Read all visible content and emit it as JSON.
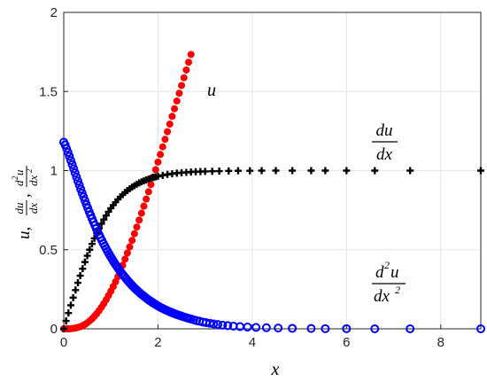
{
  "chart_data": {
    "type": "scatter",
    "title": "",
    "xlabel": "x",
    "ylabel_parts": {
      "u": "u,",
      "du": "du",
      "dx": "dx",
      "d2u": "d",
      "d2u_sup": "2",
      "d2u_u": "u",
      "dx2": "dx",
      "dx2_sup": "2",
      "comma": ","
    },
    "xlim": [
      0,
      8.85
    ],
    "ylim": [
      0,
      2
    ],
    "xticks": [
      0,
      2,
      4,
      6,
      8
    ],
    "yticks": [
      0,
      0.5,
      1,
      1.5,
      2
    ],
    "xtick_labels": [
      "0",
      "2",
      "4",
      "6",
      "8"
    ],
    "ytick_labels": [
      "0",
      "0.5",
      "1",
      "1.5",
      "2"
    ],
    "grid": true,
    "series": [
      {
        "name": "u",
        "marker": "filled-circle",
        "color": "#ff0000",
        "formula": "x - tanh(x) approx ; visible until y=2",
        "x": [
          0.0,
          0.05,
          0.1,
          0.15,
          0.2,
          0.25,
          0.3,
          0.35,
          0.4,
          0.45,
          0.5,
          0.55,
          0.6,
          0.65,
          0.7,
          0.75,
          0.8,
          0.85,
          0.9,
          0.95,
          1.0,
          1.05,
          1.1,
          1.15,
          1.2,
          1.25,
          1.3,
          1.35,
          1.4,
          1.45,
          1.5,
          1.55,
          1.6,
          1.65,
          1.7,
          1.75,
          1.8,
          1.85,
          1.9,
          1.95,
          2.0,
          2.05,
          2.1,
          2.15,
          2.2,
          2.25,
          2.3,
          2.35,
          2.4,
          2.45,
          2.5,
          2.55,
          2.6,
          2.65,
          2.7
        ],
        "y": [
          0.0,
          0.0,
          0.0,
          0.001,
          0.003,
          0.005,
          0.009,
          0.013,
          0.02,
          0.028,
          0.038,
          0.05,
          0.063,
          0.079,
          0.096,
          0.115,
          0.136,
          0.159,
          0.184,
          0.21,
          0.238,
          0.267,
          0.298,
          0.33,
          0.366,
          0.402,
          0.44,
          0.479,
          0.518,
          0.559,
          0.601,
          0.643,
          0.687,
          0.731,
          0.775,
          0.82,
          0.866,
          0.912,
          0.959,
          1.006,
          1.054,
          1.102,
          1.15,
          1.198,
          1.246,
          1.294,
          1.343,
          1.391,
          1.44,
          1.489,
          1.538,
          1.587,
          1.636,
          1.685,
          1.734
        ]
      },
      {
        "name": "du/dx",
        "marker": "plus",
        "color": "#000000",
        "formula": "tanh(x)^2-ish sigmoid",
        "x": [
          0.0,
          0.05,
          0.1,
          0.15,
          0.2,
          0.25,
          0.3,
          0.35,
          0.4,
          0.45,
          0.5,
          0.55,
          0.6,
          0.65,
          0.7,
          0.75,
          0.8,
          0.85,
          0.9,
          0.95,
          1.0,
          1.05,
          1.1,
          1.15,
          1.2,
          1.25,
          1.3,
          1.35,
          1.4,
          1.45,
          1.5,
          1.55,
          1.6,
          1.65,
          1.7,
          1.75,
          1.8,
          1.85,
          1.9,
          1.95,
          2.0,
          2.1,
          2.2,
          2.3,
          2.4,
          2.5,
          2.6,
          2.7,
          2.8,
          2.9,
          3.0,
          3.15,
          3.3,
          3.5,
          3.7,
          3.95,
          4.2,
          4.5,
          4.85,
          5.25,
          5.55,
          6.0,
          6.6,
          7.35,
          8.85
        ],
        "y": [
          0.0,
          0.05,
          0.1,
          0.149,
          0.197,
          0.245,
          0.291,
          0.336,
          0.38,
          0.422,
          0.462,
          0.5,
          0.537,
          0.572,
          0.604,
          0.635,
          0.664,
          0.691,
          0.716,
          0.74,
          0.762,
          0.782,
          0.8,
          0.818,
          0.834,
          0.848,
          0.862,
          0.874,
          0.885,
          0.896,
          0.905,
          0.914,
          0.922,
          0.929,
          0.935,
          0.941,
          0.947,
          0.952,
          0.956,
          0.96,
          0.964,
          0.97,
          0.976,
          0.98,
          0.984,
          0.987,
          0.989,
          0.991,
          0.993,
          0.994,
          0.995,
          0.996,
          0.997,
          0.998,
          0.999,
          0.999,
          1.0,
          1.0,
          1.0,
          1.0,
          1.0,
          1.0,
          1.0,
          1.0,
          1.0
        ]
      },
      {
        "name": "d2u/dx2",
        "marker": "open-circle",
        "color": "#0000ff",
        "formula": "decaying curve from ~1.18",
        "x": [
          0.0,
          0.03,
          0.06,
          0.09,
          0.12,
          0.15,
          0.18,
          0.21,
          0.24,
          0.27,
          0.3,
          0.33,
          0.36,
          0.39,
          0.42,
          0.45,
          0.48,
          0.51,
          0.54,
          0.57,
          0.6,
          0.63,
          0.66,
          0.69,
          0.72,
          0.75,
          0.78,
          0.81,
          0.84,
          0.87,
          0.9,
          0.93,
          0.96,
          0.99,
          1.02,
          1.05,
          1.08,
          1.11,
          1.14,
          1.17,
          1.2,
          1.23,
          1.26,
          1.29,
          1.32,
          1.35,
          1.38,
          1.41,
          1.44,
          1.47,
          1.5,
          1.53,
          1.56,
          1.59,
          1.62,
          1.65,
          1.68,
          1.71,
          1.74,
          1.77,
          1.8,
          1.83,
          1.86,
          1.89,
          1.92,
          1.95,
          1.98,
          2.01,
          2.04,
          2.07,
          2.1,
          2.13,
          2.16,
          2.19,
          2.22,
          2.25,
          2.28,
          2.31,
          2.34,
          2.37,
          2.4,
          2.43,
          2.46,
          2.49,
          2.52,
          2.55,
          2.6,
          2.65,
          2.7,
          2.76,
          2.82,
          2.88,
          2.95,
          3.02,
          3.1,
          3.18,
          3.27,
          3.37,
          3.48,
          3.6,
          3.74,
          3.9,
          4.08,
          4.3,
          4.55,
          4.85,
          5.25,
          5.55,
          6.0,
          6.6,
          7.35,
          8.85
        ],
        "y": [
          1.18,
          1.163,
          1.14,
          1.115,
          1.09,
          1.064,
          1.038,
          1.012,
          0.986,
          0.96,
          0.934,
          0.909,
          0.883,
          0.858,
          0.834,
          0.81,
          0.786,
          0.763,
          0.74,
          0.718,
          0.696,
          0.675,
          0.654,
          0.634,
          0.614,
          0.595,
          0.576,
          0.558,
          0.54,
          0.523,
          0.506,
          0.49,
          0.474,
          0.459,
          0.444,
          0.429,
          0.415,
          0.402,
          0.389,
          0.376,
          0.363,
          0.351,
          0.34,
          0.329,
          0.318,
          0.307,
          0.297,
          0.287,
          0.277,
          0.268,
          0.259,
          0.25,
          0.242,
          0.234,
          0.226,
          0.218,
          0.211,
          0.204,
          0.197,
          0.19,
          0.183,
          0.177,
          0.171,
          0.165,
          0.159,
          0.154,
          0.148,
          0.143,
          0.138,
          0.133,
          0.129,
          0.124,
          0.12,
          0.116,
          0.112,
          0.108,
          0.104,
          0.1,
          0.097,
          0.093,
          0.09,
          0.087,
          0.084,
          0.081,
          0.078,
          0.075,
          0.071,
          0.066,
          0.062,
          0.057,
          0.052,
          0.048,
          0.043,
          0.039,
          0.035,
          0.031,
          0.027,
          0.023,
          0.02,
          0.017,
          0.014,
          0.011,
          0.009,
          0.007,
          0.005,
          0.003,
          0.002,
          0.001,
          0.001,
          0.0,
          0.0,
          0.0
        ]
      }
    ],
    "annotations": [
      {
        "id": "u",
        "text": "u",
        "x": 3.0,
        "y": 1.5
      },
      {
        "id": "du",
        "num": "du",
        "den": "dx",
        "x": 6.8,
        "y": 1.2
      },
      {
        "id": "d2u",
        "num": "d",
        "num_sup": "2",
        "num_tail": "u",
        "den": "dx",
        "den_sup": "2",
        "x": 6.8,
        "y": 0.27
      }
    ]
  }
}
